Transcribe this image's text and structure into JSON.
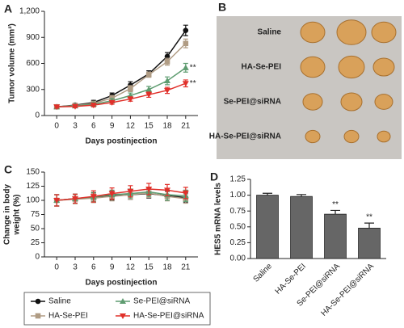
{
  "chart_data": [
    {
      "type": "line",
      "letter": "A",
      "xlabel": "Days postinjection",
      "ylabel": "Tumor volume (mm³)",
      "x": [
        0,
        3,
        6,
        9,
        12,
        15,
        18,
        21
      ],
      "xlim": [
        -2,
        23
      ],
      "xticks": [
        0,
        3,
        6,
        9,
        12,
        15,
        18,
        21
      ],
      "ylim": [
        0,
        1200
      ],
      "yticks": [
        0,
        300,
        600,
        900,
        {
          "value": 1200,
          "label": "1,200"
        }
      ],
      "series": [
        {
          "name": "Saline",
          "color": "#111111",
          "marker": "circle",
          "values": [
            100,
            120,
            150,
            230,
            350,
            480,
            680,
            980
          ],
          "errors": [
            20,
            20,
            25,
            30,
            40,
            35,
            45,
            60
          ]
        },
        {
          "name": "HA-Se-PEI",
          "color": "#b09c84",
          "marker": "square",
          "values": [
            100,
            115,
            140,
            200,
            310,
            470,
            620,
            830
          ],
          "errors": [
            20,
            20,
            20,
            30,
            35,
            30,
            40,
            50
          ]
        },
        {
          "name": "Se-PEI@siRNA",
          "color": "#5e9c70",
          "marker": "triangle",
          "values": [
            100,
            110,
            130,
            170,
            230,
            300,
            400,
            550
          ],
          "errors": [
            15,
            15,
            20,
            25,
            30,
            35,
            45,
            50
          ],
          "significance": "**"
        },
        {
          "name": "HA-Se-PEI@siRNA",
          "color": "#e0302a",
          "marker": "triangle-down",
          "values": [
            100,
            105,
            120,
            150,
            190,
            240,
            290,
            370
          ],
          "errors": [
            15,
            15,
            20,
            20,
            25,
            30,
            35,
            40
          ],
          "significance": "**"
        }
      ]
    },
    {
      "type": "line",
      "letter": "C",
      "xlabel": "Days postinjection",
      "ylabel": [
        "Change in body",
        "weight (%)"
      ],
      "x": [
        0,
        3,
        6,
        9,
        12,
        15,
        18,
        21
      ],
      "xlim": [
        -2,
        23
      ],
      "xticks": [
        0,
        3,
        6,
        9,
        12,
        15,
        18,
        21
      ],
      "ylim": [
        0,
        150
      ],
      "yticks": [
        0,
        25,
        50,
        75,
        100,
        125,
        150
      ],
      "series": [
        {
          "color": "#111111",
          "marker": "circle",
          "values": [
            100,
            103,
            105,
            108,
            110,
            112,
            108,
            105
          ],
          "errors": [
            10,
            8,
            8,
            8,
            8,
            8,
            8,
            8
          ]
        },
        {
          "color": "#b09c84",
          "marker": "square",
          "values": [
            100,
            102,
            104,
            107,
            110,
            113,
            107,
            103
          ],
          "errors": [
            10,
            8,
            8,
            8,
            8,
            8,
            8,
            8
          ]
        },
        {
          "color": "#5e9c70",
          "marker": "triangle",
          "values": [
            100,
            103,
            106,
            110,
            112,
            115,
            110,
            108
          ],
          "errors": [
            10,
            8,
            8,
            8,
            8,
            8,
            10,
            10
          ]
        },
        {
          "color": "#e0302a",
          "marker": "triangle-down",
          "values": [
            100,
            103,
            107,
            112,
            116,
            120,
            118,
            113
          ],
          "errors": [
            10,
            8,
            10,
            10,
            10,
            10,
            10,
            10
          ]
        }
      ]
    },
    {
      "type": "bar",
      "letter": "D",
      "ylabel": "HES5 mRNA levels",
      "color": "#666666",
      "categories": [
        "Saline",
        "HA-Se-PEI",
        "Se-PEI@siRNA",
        "HA-Se-PEI@siRNA"
      ],
      "values": [
        1.0,
        0.98,
        0.7,
        0.48
      ],
      "errors": [
        0.03,
        0.03,
        0.06,
        0.08
      ],
      "significance": [
        null,
        null,
        "**",
        "**"
      ],
      "ylim": [
        0,
        1.25
      ],
      "yticks": [
        {
          "value": 0,
          "label": "0.00"
        },
        {
          "value": 0.25,
          "label": "0.25"
        },
        {
          "value": 0.5,
          "label": "0.50"
        },
        {
          "value": 0.75,
          "label": "0.75"
        },
        {
          "value": 1,
          "label": "1.00"
        },
        {
          "value": 1.25,
          "label": "1.25"
        }
      ]
    }
  ],
  "image_panel": {
    "letter": "B",
    "row_labels": [
      "Saline",
      "HA-Se-PEI",
      "Se-PEI@siRNA",
      "HA-Se-PEI@siRNA"
    ]
  }
}
